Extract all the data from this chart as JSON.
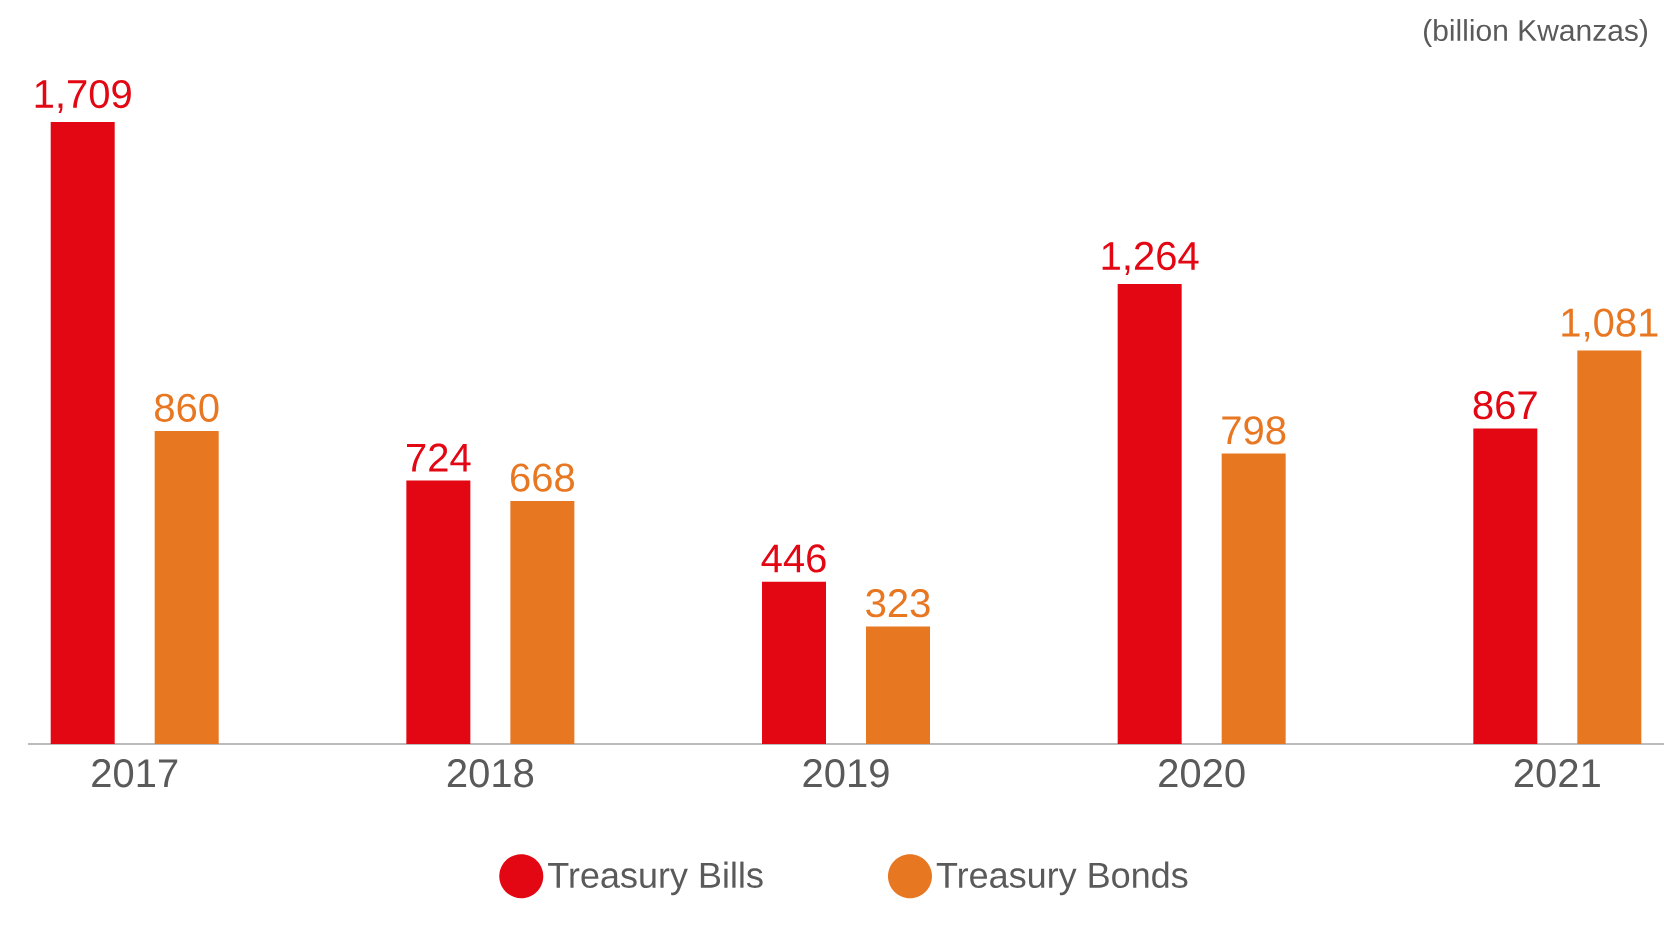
{
  "chart_data": {
    "type": "bar",
    "categories": [
      "2017",
      "2018",
      "2019",
      "2020",
      "2021"
    ],
    "series": [
      {
        "name": "Treasury Bills",
        "color": "#e30613",
        "values": [
          1709,
          724,
          446,
          1264,
          867
        ],
        "value_labels": [
          "1,709",
          "724",
          "446",
          "1,264",
          "867"
        ]
      },
      {
        "name": "Treasury Bonds",
        "color": "#e87722",
        "values": [
          860,
          668,
          323,
          798,
          1081
        ],
        "value_labels": [
          "860",
          "668",
          "323",
          "798",
          "1,081"
        ]
      }
    ],
    "legend": "bottom",
    "annotations": [
      "(billion Kwanzas)"
    ]
  }
}
